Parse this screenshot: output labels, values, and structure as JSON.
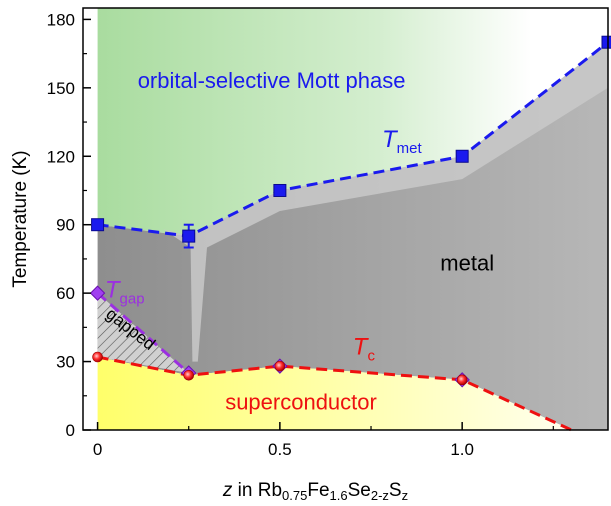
{
  "chart_data": {
    "type": "scatter",
    "xlim": [
      -0.04,
      1.4
    ],
    "ylim": [
      0,
      185
    ],
    "xticks": [
      "0",
      "0.5",
      "1.0"
    ],
    "yticks": [
      "0",
      "30",
      "60",
      "90",
      "120",
      "150",
      "180"
    ],
    "xticks_values": [
      0,
      0.5,
      1.0
    ],
    "yticks_values": [
      0,
      30,
      60,
      90,
      120,
      150,
      180
    ],
    "xlabel": {
      "var": "z",
      "text": " in Rb",
      "sub1": "0.75",
      "mid1": "Fe",
      "sub2": "1.6",
      "mid2": "Se",
      "sub3": "2-z",
      "mid3": "S",
      "sub4": "z"
    },
    "ylabel": "Temperature (K)",
    "grid": false,
    "series": [
      {
        "name": "T_met",
        "marker": "square",
        "color": "#1a1aee",
        "points": [
          {
            "x": 0,
            "y": 90
          },
          {
            "x": 0.25,
            "y": 85,
            "err": 5
          },
          {
            "x": 0.5,
            "y": 105
          },
          {
            "x": 1.0,
            "y": 120
          },
          {
            "x": 1.4,
            "y": 170
          }
        ]
      },
      {
        "name": "T_gap",
        "marker": "diamond",
        "color": "#9b30e0",
        "points": [
          {
            "x": 0,
            "y": 60
          },
          {
            "x": 0.25,
            "y": 25
          },
          {
            "x": 0.5,
            "y": 28
          },
          {
            "x": 1.0,
            "y": 22
          }
        ]
      },
      {
        "name": "T_c",
        "marker": "circle",
        "color": "#e02020",
        "points": [
          {
            "x": 0,
            "y": 32
          },
          {
            "x": 0.25,
            "y": 24
          },
          {
            "x": 0.5,
            "y": 28
          },
          {
            "x": 1.0,
            "y": 22
          }
        ]
      }
    ],
    "labels": {
      "tmet_main": "T",
      "tmet_sub": "met",
      "tgap_main": "T",
      "tgap_sub": "gap",
      "tc_main": "T",
      "tc_sub": "c",
      "osmp": "orbital-selective Mott phase",
      "metal": "metal",
      "gapped": "gapped",
      "superconductor": "superconductor"
    },
    "colors": {
      "osmp_fill": "#a8dca0",
      "metal_fill": "#a9a9a9",
      "metal_dark": "#8f8f8f",
      "sc_fill": "#ffff70",
      "tmet_line": "#1a1aee",
      "tc_line": "#ee1010",
      "tgap_line": "#9b30e0"
    }
  }
}
